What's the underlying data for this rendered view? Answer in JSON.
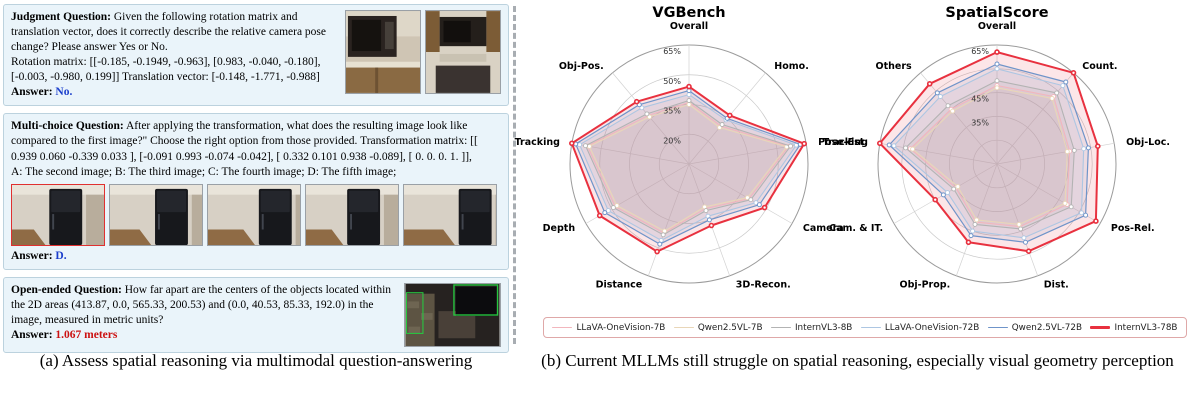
{
  "figure": {
    "captions": {
      "a": "(a) Assess spatial reasoning via multimodal question-answering",
      "b": "(b) Current MLLMs still struggle on spatial reasoning, especially visual geometry perception"
    }
  },
  "panel_a": {
    "card_bg": "#eaf4fa",
    "judgment": {
      "title": "Judgment Question:",
      "question": "Given the following rotation matrix and translation vector, does it correctly describe the relative camera pose change? Please answer Yes or No.",
      "detail": "Rotation matrix: [[-0.185, -0.1949, -0.963], [0.983, -0.040, -0.180], [-0.003, -0.980, 0.199]]  Translation vector: [-0.148, -1.771, -0.988]",
      "answer_label": "Answer:",
      "answer": "No.",
      "answer_color": "#1c3fcc"
    },
    "multichoice": {
      "title": "Multi-choice Question:",
      "question": "After applying the transformation, what does the resulting image look like compared to the first image?\" Choose the right option from those provided. Transformation matrix: [[ 0.939 0.060 -0.339 0.033 ], [-0.091 0.993 -0.074 -0.042], [ 0.332 0.101 0.938 -0.089], [ 0. 0. 0. 1. ]],",
      "options": "A: The second image; B: The third image; C: The fourth image; D: The fifth image;",
      "answer_label": "Answer:",
      "answer": "D.",
      "answer_color": "#1c3fcc"
    },
    "openended": {
      "title": "Open-ended Question:",
      "question": "How far apart are the centers of the objects located within the 2D areas (413.87, 0.0, 565.33, 200.53) and (0.0, 40.53, 85.33, 192.0) in the image, measured in metric units?",
      "answer_label": "Answer:",
      "answer": "1.067 meters",
      "answer_color": "#cc1111"
    }
  },
  "chart_data": [
    {
      "type": "radar",
      "title": "VGBench",
      "axes": [
        "Overall",
        "Homo.",
        "Pose-Est.",
        "Camera",
        "3D-Recon.",
        "Distance",
        "Depth",
        "Tracking",
        "Obj-Pos."
      ],
      "rmin": 5,
      "rmax": 65,
      "rings": [
        20,
        35,
        50,
        65
      ],
      "ring_labels": [
        "20%",
        "35%",
        "50%",
        "65%"
      ],
      "legend_position": "bottom",
      "series": [
        {
          "name": "LLaVA-OneVision-7B",
          "color": "#f2b6bd",
          "lw": 1.1,
          "values": [
            36,
            30,
            56,
            40,
            29,
            42,
            48,
            57,
            37
          ]
        },
        {
          "name": "Qwen2.5VL-7B",
          "color": "#e9d6b8",
          "lw": 1.1,
          "values": [
            35,
            29,
            55,
            39,
            28,
            41,
            47,
            56,
            36
          ]
        },
        {
          "name": "InternVL3-8B",
          "color": "#b3b3b3",
          "lw": 1.1,
          "values": [
            37,
            31,
            57,
            41,
            30,
            43,
            49,
            58,
            38
          ]
        },
        {
          "name": "LLaVA-OneVision-72B",
          "color": "#adc6e2",
          "lw": 1.1,
          "values": [
            40,
            34,
            60,
            44,
            33,
            46,
            52,
            61,
            42
          ]
        },
        {
          "name": "Qwen2.5VL-72B",
          "color": "#6f94c9",
          "lw": 1.2,
          "values": [
            42,
            35,
            62,
            46,
            35,
            48,
            54,
            63,
            44
          ]
        },
        {
          "name": "InternVL3-78B",
          "color": "#e8313f",
          "lw": 2.0,
          "values": [
            44,
            37,
            64,
            49,
            38,
            52,
            57,
            65,
            46
          ]
        }
      ]
    },
    {
      "type": "radar",
      "title": "SpatialScore",
      "axes": [
        "Overall",
        "Count.",
        "Obj-Loc.",
        "Pos-Rel.",
        "Dist.",
        "Obj-Prop.",
        "Cam. & IT.",
        "Tracking",
        "Others"
      ],
      "rmin": 15,
      "rmax": 65,
      "rings": [
        25,
        35,
        45,
        55,
        65
      ],
      "ring_labels": [
        "",
        "35%",
        "45%",
        "",
        "65%"
      ],
      "legend_position": "bottom",
      "series": [
        {
          "name": "LLaVA-OneVision-7B",
          "color": "#f2b6bd",
          "lw": 1.1,
          "values": [
            48,
            52,
            46,
            49,
            43,
            41,
            35,
            52,
            45
          ]
        },
        {
          "name": "Qwen2.5VL-7B",
          "color": "#e9d6b8",
          "lw": 1.1,
          "values": [
            47,
            51,
            45,
            48,
            42,
            40,
            34,
            51,
            44
          ]
        },
        {
          "name": "InternVL3-8B",
          "color": "#b3b3b3",
          "lw": 1.1,
          "values": [
            50,
            54,
            48,
            51,
            44,
            42,
            36,
            54,
            47
          ]
        },
        {
          "name": "LLaVA-OneVision-72B",
          "color": "#adc6e2",
          "lw": 1.1,
          "values": [
            55,
            58,
            52,
            56,
            48,
            45,
            39,
            59,
            52
          ]
        },
        {
          "name": "Qwen2.5VL-72B",
          "color": "#6f94c9",
          "lw": 1.2,
          "values": [
            57,
            60,
            54,
            58,
            50,
            47,
            41,
            61,
            54
          ]
        },
        {
          "name": "InternVL3-78B",
          "color": "#e8313f",
          "lw": 2.0,
          "values": [
            62,
            65,
            58,
            63,
            54,
            50,
            45,
            65,
            59
          ]
        }
      ]
    }
  ]
}
